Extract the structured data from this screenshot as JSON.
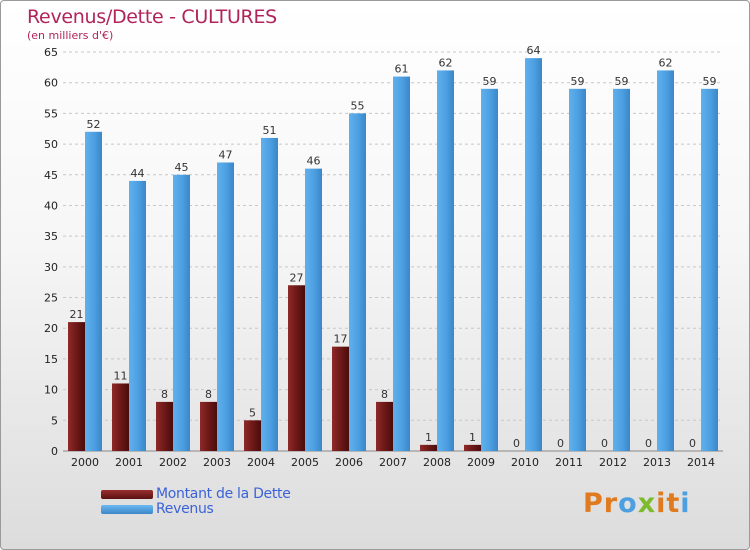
{
  "title": "Revenus/Dette - CULTURES",
  "subtitle": "(en milliers d'€)",
  "colors": {
    "dette": "#6e1818",
    "revenus": "#4c9fe0",
    "title": "#b0245a",
    "legend_text": "#3b62d6"
  },
  "watermark": {
    "text": "Proxiti",
    "letters": [
      "P",
      "r",
      "o",
      "x",
      "i",
      "t",
      "i"
    ],
    "colors": [
      "#e07a1f",
      "#e07a1f",
      "#4c9fe0",
      "#7dbb2a",
      "#e07a1f",
      "#e07a1f",
      "#4c9fe0"
    ]
  },
  "chart_data": {
    "type": "bar",
    "categories": [
      "2000",
      "2001",
      "2002",
      "2003",
      "2004",
      "2005",
      "2006",
      "2007",
      "2008",
      "2009",
      "2010",
      "2011",
      "2012",
      "2013",
      "2014"
    ],
    "series": [
      {
        "name": "Montant de la Dette",
        "values": [
          21,
          11,
          8,
          8,
          5,
          27,
          17,
          8,
          1,
          1,
          0,
          0,
          0,
          0,
          0
        ]
      },
      {
        "name": "Revenus",
        "values": [
          52,
          44,
          45,
          47,
          51,
          46,
          55,
          61,
          62,
          59,
          64,
          59,
          59,
          62,
          59
        ]
      }
    ],
    "ylim": [
      0,
      65
    ],
    "yticks": [
      0,
      5,
      10,
      15,
      20,
      25,
      30,
      35,
      40,
      45,
      50,
      55,
      60,
      65
    ],
    "grid": true,
    "legend": "bottom-left"
  }
}
